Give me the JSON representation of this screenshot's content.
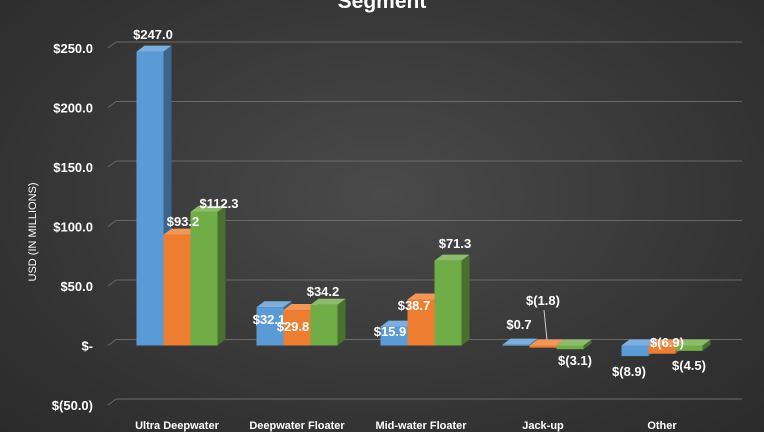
{
  "chart_data": {
    "type": "bar",
    "title": "Segment",
    "ylabel": "USD (IN MILLIONS)",
    "ylim": [
      -50,
      250
    ],
    "y_ticks": [
      250,
      200,
      150,
      100,
      50,
      0,
      -50
    ],
    "y_tick_labels": [
      "$250.0",
      "$200.0",
      "$150.0",
      "$100.0",
      "$50.0",
      "$-",
      "$(50.0)"
    ],
    "grid": true,
    "categories": [
      "Ultra Deepwater",
      "Deepwater Floater",
      "Mid-water Floater",
      "Jack-up",
      "Other"
    ],
    "series": [
      {
        "values": [
          247.0,
          32.1,
          15.9,
          0.7,
          -8.9
        ],
        "labels": [
          "$247.0",
          "$32.1",
          "$15.9",
          "$0.7",
          "$(8.9)"
        ],
        "color": "#5b9bd5"
      },
      {
        "values": [
          93.2,
          29.8,
          38.7,
          -1.8,
          -6.9
        ],
        "labels": [
          "$93.2",
          "$29.8",
          "$38.7",
          "$(1.8)",
          "$(6.9)"
        ],
        "color": "#ed7d31"
      },
      {
        "values": [
          112.3,
          34.2,
          71.3,
          -3.1,
          -4.5
        ],
        "labels": [
          "$112.3",
          "$34.2",
          "$71.3",
          "$(3.1)",
          "$(4.5)"
        ],
        "color": "#70ad47"
      }
    ]
  }
}
